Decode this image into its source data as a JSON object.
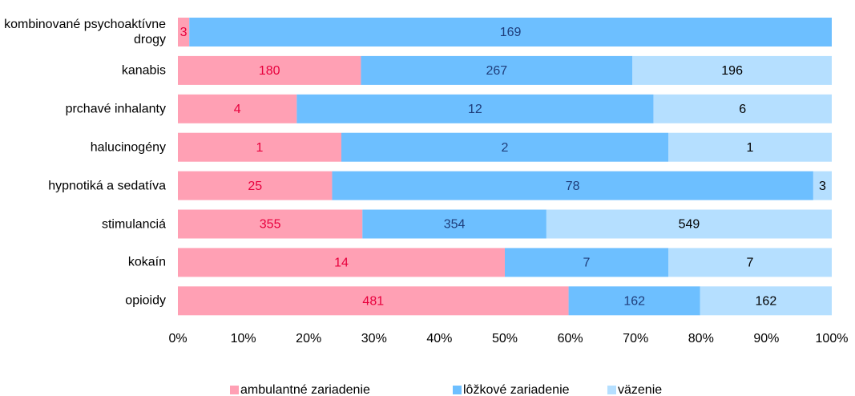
{
  "chart_data": {
    "type": "bar",
    "orientation": "horizontal",
    "stack": "percent",
    "categories": [
      "kombinované psychoaktívne drogy",
      "kanabis",
      "prchavé inhalanty",
      "halucinogény",
      "hypnotiká a sedatíva",
      "stimulanciá",
      "kokaín",
      "opioidy"
    ],
    "series": [
      {
        "name": "ambulantné zariadenie",
        "color": "#ffa0b4",
        "label_color": "#e8003d",
        "values": [
          3,
          180,
          4,
          1,
          25,
          355,
          14,
          481
        ]
      },
      {
        "name": "lôžkové zariadenie",
        "color": "#6dbfff",
        "label_color": "#1f3d7a",
        "values": [
          169,
          267,
          12,
          2,
          78,
          354,
          7,
          162
        ]
      },
      {
        "name": "väzenie",
        "color": "#b5dfff",
        "label_color": "#000000",
        "values": [
          null,
          196,
          6,
          1,
          3,
          549,
          7,
          162
        ]
      }
    ],
    "xlim": [
      0,
      100
    ],
    "xticks": [
      {
        "value": 0,
        "label": "0%"
      },
      {
        "value": 10,
        "label": "10%"
      },
      {
        "value": 20,
        "label": "20%"
      },
      {
        "value": 30,
        "label": "30%"
      },
      {
        "value": 40,
        "label": "40%"
      },
      {
        "value": 50,
        "label": "50%"
      },
      {
        "value": 60,
        "label": "60%"
      },
      {
        "value": 70,
        "label": "70%"
      },
      {
        "value": 80,
        "label": "80%"
      },
      {
        "value": 90,
        "label": "90%"
      },
      {
        "value": 100,
        "label": "100%"
      }
    ],
    "legend": "bottom"
  }
}
